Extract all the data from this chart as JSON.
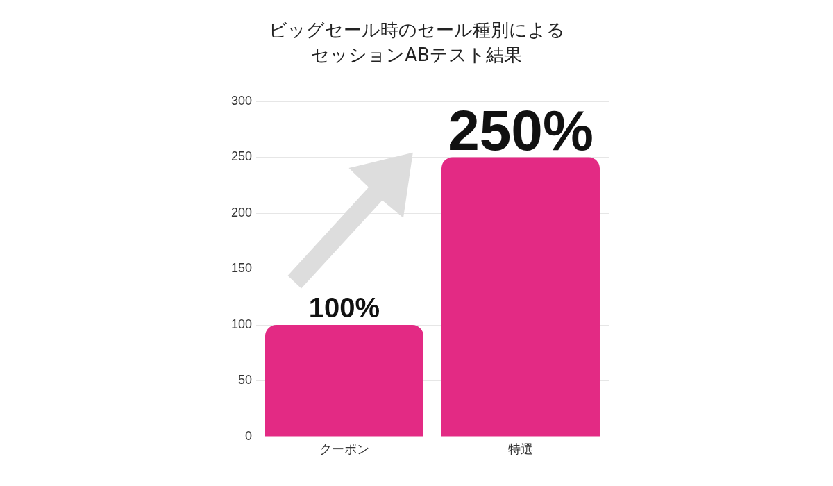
{
  "chart_data": {
    "type": "bar",
    "title": "ビッグセール時のセール種別によるセッションABテスト結果",
    "categories": [
      "クーポン",
      "特選"
    ],
    "values": [
      100,
      250
    ],
    "color": "#e32a84",
    "value_labels": [
      "100%",
      "250%"
    ],
    "ylim": [
      0,
      300
    ],
    "yticks": [
      0,
      50,
      100,
      150,
      200,
      250,
      300
    ],
    "grid": "y"
  }
}
